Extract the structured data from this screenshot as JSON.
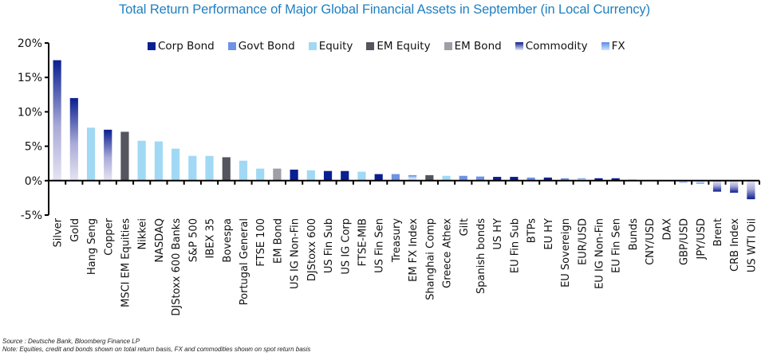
{
  "chart_data": {
    "type": "bar",
    "title": "Total Return Performance of Major Global Financial Assets in September (in Local Currency)",
    "xlabel": "",
    "ylabel": "",
    "ylim": [
      -5,
      20
    ],
    "yticks": [
      -5,
      0,
      5,
      10,
      15,
      20
    ],
    "ytick_labels": [
      "-5%",
      "0%",
      "5%",
      "10%",
      "15%",
      "20%"
    ],
    "grid": false,
    "legend_position": "top",
    "legend": [
      {
        "name": "Corp Bond",
        "key": "corp",
        "color": "#0a1f8f",
        "style": "solid"
      },
      {
        "name": "Govt Bond",
        "key": "govt",
        "color": "#6f93e3",
        "style": "solid"
      },
      {
        "name": "Equity",
        "key": "equity",
        "color": "#a1d9f5",
        "style": "solid"
      },
      {
        "name": "EM Equity",
        "key": "emeq",
        "color": "#54555f",
        "style": "solid"
      },
      {
        "name": "EM Bond",
        "key": "embond",
        "color": "#9d9ea6",
        "style": "solid"
      },
      {
        "name": "Commodity",
        "key": "commodity",
        "color": "#0a1f8f",
        "color2": "#e6e4f3",
        "style": "gradient"
      },
      {
        "name": "FX",
        "key": "fx",
        "color": "#5b8ce3",
        "color2": "#cfe3fb",
        "style": "gradient"
      }
    ],
    "categories": [
      "Silver",
      "Gold",
      "Hang Seng",
      "Copper",
      "MSCI EM Equities",
      "Nikkei",
      "NASDAQ",
      "DJStoxx 600 Banks",
      "S&P 500",
      "IBEX 35",
      "Bovespa",
      "Portugal General",
      "FTSE 100",
      "EM Bond",
      "US IG Non-Fin",
      "DJStoxx 600",
      "US Fin Sub",
      "US IG Corp",
      "FTSE-MIB",
      "US Fin Sen",
      "Treasury",
      "EM FX Index",
      "Shanghai Comp",
      "Greece Athex",
      "Gilt",
      "Spanish bonds",
      "US HY",
      "EU Fin Sub",
      "BTPs",
      "EU HY",
      "EU Sovereign",
      "EUR/USD",
      "EU IG Non-Fin",
      "EU Fin Sen",
      "Bunds",
      "CNY/USD",
      "DAX",
      "GBP/USD",
      "JPY/USD",
      "Brent",
      "CRB Index",
      "US WTI Oil"
    ],
    "values": [
      17.5,
      12.0,
      7.7,
      7.4,
      7.1,
      5.8,
      5.7,
      4.65,
      3.6,
      3.6,
      3.4,
      2.9,
      1.75,
      1.75,
      1.6,
      1.5,
      1.4,
      1.4,
      1.3,
      0.95,
      0.95,
      0.8,
      0.8,
      0.7,
      0.7,
      0.6,
      0.55,
      0.55,
      0.45,
      0.45,
      0.35,
      0.35,
      0.35,
      0.35,
      0.15,
      0.0,
      0.0,
      -0.3,
      -0.45,
      -1.6,
      -1.75,
      -2.7
    ],
    "asset_class": [
      "commodity",
      "commodity",
      "equity",
      "commodity",
      "emeq",
      "equity",
      "equity",
      "equity",
      "equity",
      "equity",
      "emeq",
      "equity",
      "equity",
      "embond",
      "corp",
      "equity",
      "corp",
      "corp",
      "equity",
      "corp",
      "govt",
      "fx",
      "emeq",
      "equity",
      "govt",
      "govt",
      "corp",
      "corp",
      "govt",
      "corp",
      "govt",
      "fx",
      "corp",
      "corp",
      "govt",
      "fx",
      "equity",
      "fx",
      "fx",
      "commodity",
      "commodity",
      "commodity"
    ]
  },
  "footer": {
    "source": "Source : Deutsche Bank, Bloomberg Finance LP",
    "note": "Note: Equities, credit and bonds shown on total return basis, FX and commodities shown on spot return basis"
  }
}
